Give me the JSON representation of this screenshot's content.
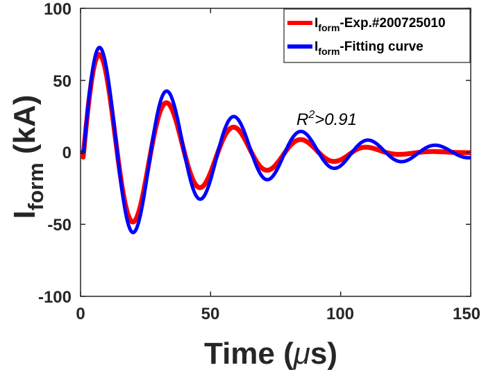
{
  "chart_data": {
    "type": "line",
    "xlabel_main": "Time (",
    "xlabel_mu": "μ",
    "xlabel_unit": "s)",
    "ylabel_main": "I",
    "ylabel_sub": "form",
    "ylabel_unit": " (kA)",
    "xlim": [
      0,
      150
    ],
    "ylim": [
      -100,
      100
    ],
    "xticks": [
      "0",
      "50",
      "100",
      "150"
    ],
    "yticks": [
      "100",
      "50",
      "0",
      "-50",
      "-100"
    ],
    "grid": false,
    "legend_position": "top-right",
    "annotation": {
      "base": "R",
      "sup": "2",
      "rest": ">0.91",
      "x": 84,
      "y": 22
    },
    "series": [
      {
        "name": "Iform-Exp.#200725010",
        "legend_main": "I",
        "legend_sub": "form",
        "legend_rest": "-Exp.#200725010",
        "color": "#ff0000",
        "model": {
          "A": 80,
          "tau": 38,
          "period": 25.8,
          "t0": 1.2,
          "tail_decay": 22
        },
        "x": [
          0,
          1,
          1.2,
          3,
          5,
          7,
          9,
          12,
          14,
          17,
          20,
          23,
          26,
          29,
          32.5,
          35,
          38,
          41,
          45,
          48,
          52,
          55,
          58.5,
          61,
          64,
          67,
          71,
          75,
          80,
          84,
          88,
          92,
          97,
          100,
          105,
          110,
          115,
          120,
          125,
          130,
          135,
          140,
          145,
          150
        ],
        "y": [
          0,
          -4,
          -5,
          34,
          61,
          74,
          67,
          26,
          -11,
          -47,
          -57,
          -36,
          -1,
          26,
          43,
          36,
          14,
          -11,
          -31,
          -23,
          3,
          17,
          24,
          17,
          2,
          -10,
          -16,
          -7,
          7,
          12,
          7,
          -1,
          -5,
          -3,
          1,
          3,
          2,
          1,
          0,
          0,
          0,
          0,
          0,
          0
        ]
      },
      {
        "name": "Iform-Fitting curve",
        "legend_main": "I",
        "legend_sub": "form",
        "legend_rest": "-Fitting curve",
        "color": "#0000ff",
        "model": {
          "A": 83,
          "tau": 48,
          "period": 25.8,
          "t0": 1.2
        },
        "x": [
          0,
          1.2,
          3,
          5,
          7,
          9,
          12,
          14,
          17,
          20,
          23,
          26,
          29,
          32.5,
          35,
          38,
          41,
          45,
          48,
          52,
          55,
          58.5,
          61,
          64,
          67,
          71,
          75,
          80,
          84,
          88,
          92,
          97,
          100,
          105,
          110,
          115,
          120,
          125,
          130,
          135,
          140,
          145,
          150
        ],
        "y": [
          0,
          0,
          38,
          66,
          77,
          68,
          27,
          -10,
          -46,
          -56,
          -37,
          -2,
          25,
          40,
          34,
          13,
          -11,
          -29,
          -22,
          3,
          16,
          22,
          16,
          2,
          -9,
          -15,
          -7,
          7,
          11,
          7,
          -1,
          -6,
          -4,
          2,
          5,
          3,
          -1,
          -3,
          -1,
          2,
          3,
          1,
          -2
        ]
      }
    ]
  }
}
